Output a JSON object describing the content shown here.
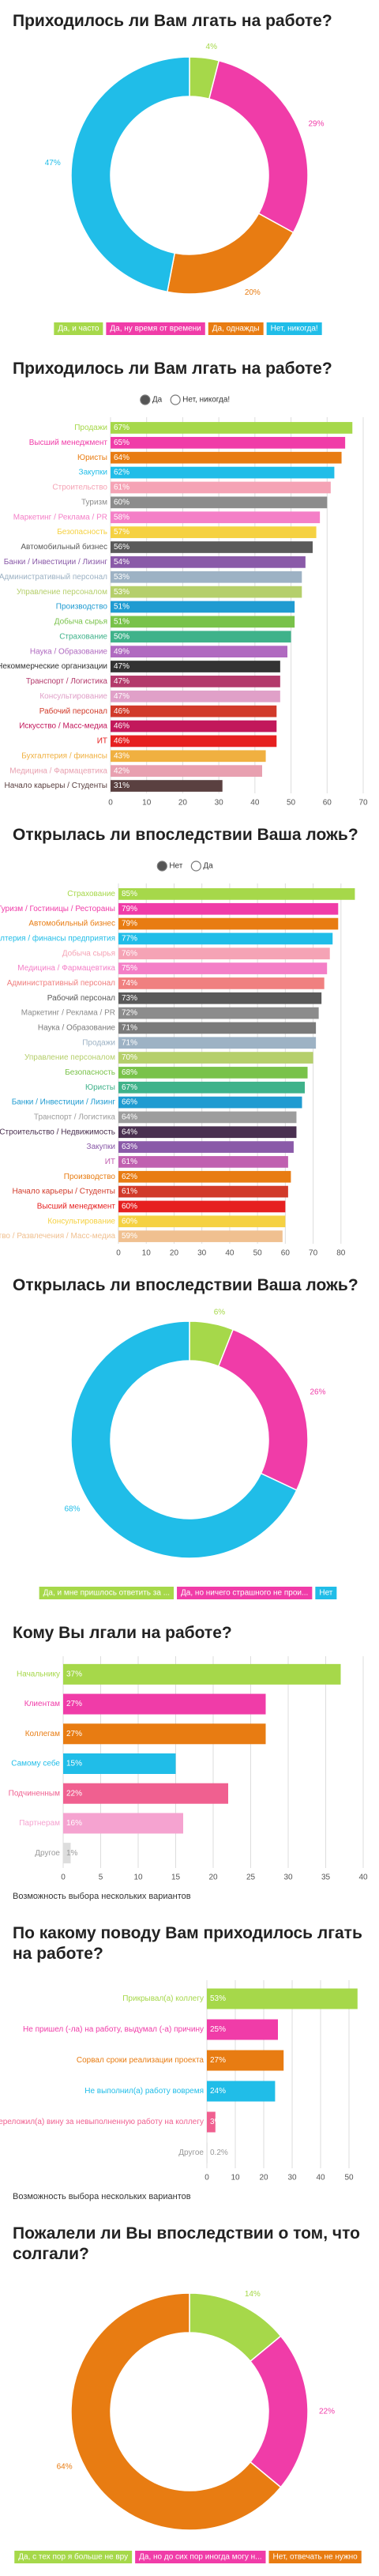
{
  "chart_data": [
    {
      "type": "donut",
      "title": "Приходилось ли Вам лгать на работе?",
      "categories": [
        "Да, и часто",
        "Да, ну время от времени",
        "Да, однажды",
        "Нет, никогда!"
      ],
      "values": [
        4,
        29,
        20,
        47
      ],
      "value_labels": [
        "4%",
        "29%",
        "20%",
        "47%"
      ],
      "colors": [
        "#a6d84a",
        "#f03ca8",
        "#e87c12",
        "#20bde8"
      ]
    },
    {
      "type": "bar",
      "title": "Приходилось ли Вам лгать на работе?",
      "options": [
        "Да",
        "Нет, никогда!"
      ],
      "categories": [
        "Продажи",
        "Высший менеджмент",
        "Юристы",
        "Закупки",
        "Строительство",
        "Туризм",
        "Маркетинг / Реклама / PR",
        "Безопасность",
        "Автомобильный бизнес",
        "Банки / Инвестиции / Лизинг",
        "Административный персонал",
        "Управление персоналом",
        "Производство",
        "Добыча сырья",
        "Страхование",
        "Наука / Образование",
        "Некоммерческие организации",
        "Транспорт / Логистика",
        "Консультирование",
        "Рабочий персонал",
        "Искусство / Масс-медиа",
        "ИТ",
        "Бухгалтерия / финансы",
        "Медицина / Фармацевтика",
        "Начало карьеры / Студенты"
      ],
      "values": [
        67,
        65,
        64,
        62,
        61,
        60,
        58,
        57,
        56,
        54,
        53,
        53,
        51,
        51,
        50,
        49,
        47,
        47,
        47,
        46,
        46,
        46,
        43,
        42,
        31
      ],
      "value_labels": [
        "67%",
        "65%",
        "64%",
        "62%",
        "61%",
        "60%",
        "58%",
        "57%",
        "56%",
        "54%",
        "53%",
        "53%",
        "51%",
        "51%",
        "50%",
        "49%",
        "47%",
        "47%",
        "47%",
        "46%",
        "46%",
        "46%",
        "43%",
        "42%",
        "31%"
      ],
      "colors": [
        "#a6d84a",
        "#f03ca8",
        "#e87c12",
        "#20bde8",
        "#f5a3b5",
        "#8c8c8c",
        "#f47fc7",
        "#f5d142",
        "#5a5a5a",
        "#8a5aa8",
        "#9db2c4",
        "#b5cf6b",
        "#1f9bd1",
        "#79c24a",
        "#3fb28a",
        "#b06ac0",
        "#333333",
        "#b33a6b",
        "#e0a0c8",
        "#d13a2a",
        "#c2185b",
        "#e62020",
        "#f0b040",
        "#e8a0b0",
        "#5a4040"
      ],
      "xlim": [
        0,
        70
      ],
      "xticks": [
        0,
        10,
        20,
        30,
        40,
        50,
        60,
        70
      ]
    },
    {
      "type": "bar",
      "title": "Открылась ли впоследствии Ваша ложь?",
      "options": [
        "Нет",
        "Да"
      ],
      "categories": [
        "Страхование",
        "Туризм / Гостиницы / Рестораны",
        "Автомобильный бизнес",
        "Бухгалтерия / финансы предприятия",
        "Добыча сырья",
        "Медицина / Фармацевтика",
        "Административный персонал",
        "Рабочий персонал",
        "Маркетинг / Реклама / PR",
        "Наука / Образование",
        "Продажи",
        "Управление персоналом",
        "Безопасность",
        "Юристы",
        "Банки / Инвестиции / Лизинг",
        "Транспорт / Логистика",
        "Строительство / Недвижимость",
        "Закупки",
        "ИТ",
        "Производство",
        "Начало карьеры / Студенты",
        "Высший менеджмент",
        "Консультирование",
        "Искусство / Развлечения / Масс-медиа"
      ],
      "values": [
        85,
        79,
        79,
        77,
        76,
        75,
        74,
        73,
        72,
        71,
        71,
        70,
        68,
        67,
        66,
        64,
        64,
        63,
        61,
        62,
        61,
        60,
        60,
        59
      ],
      "value_labels": [
        "85%",
        "79%",
        "79%",
        "77%",
        "76%",
        "75%",
        "74%",
        "73%",
        "72%",
        "71%",
        "71%",
        "70%",
        "68%",
        "67%",
        "66%",
        "64%",
        "64%",
        "63%",
        "61%",
        "62%",
        "61%",
        "60%",
        "60%",
        "59%"
      ],
      "colors": [
        "#a6d84a",
        "#f03ca8",
        "#e87c12",
        "#20bde8",
        "#f5a3b5",
        "#f47fc7",
        "#f08080",
        "#5a5a5a",
        "#8c8c8c",
        "#7a7a7a",
        "#9db2c4",
        "#b5cf6b",
        "#79c24a",
        "#3fb28a",
        "#1f9bd1",
        "#9d9d9d",
        "#4a3050",
        "#8a5aa8",
        "#c060b0",
        "#e87c12",
        "#d13a2a",
        "#e62020",
        "#f5d142",
        "#f0c090"
      ],
      "xlim": [
        0,
        88
      ],
      "xticks": [
        0,
        10,
        20,
        30,
        40,
        50,
        60,
        70,
        80
      ]
    },
    {
      "type": "donut",
      "title": "Открылась ли впоследствии Ваша ложь?",
      "categories": [
        "Да, и мне пришлось ответить за ...",
        "Да, но ничего страшного не прои...",
        "Нет"
      ],
      "values": [
        6,
        26,
        68
      ],
      "value_labels": [
        "6%",
        "26%",
        "68%"
      ],
      "colors": [
        "#a6d84a",
        "#f03ca8",
        "#20bde8"
      ]
    },
    {
      "type": "bar",
      "title": "Кому Вы лгали на работе?",
      "categories": [
        "Начальнику",
        "Клиентам",
        "Коллегам",
        "Самому себе",
        "Подчиненным",
        "Партнерам",
        "Другое"
      ],
      "values": [
        37,
        27,
        27,
        15,
        22,
        16,
        1
      ],
      "value_labels": [
        "37%",
        "27%",
        "27%",
        "15%",
        "22%",
        "16%",
        "1%"
      ],
      "colors": [
        "#a6d84a",
        "#f03ca8",
        "#e87c12",
        "#20bde8",
        "#f06090",
        "#f5a3d0",
        "#dddddd"
      ],
      "xlim": [
        0,
        40
      ],
      "xticks": [
        0,
        5,
        10,
        15,
        20,
        25,
        30,
        35,
        40
      ],
      "note": "Возможность выбора нескольких вариантов"
    },
    {
      "type": "bar",
      "title": "По какому поводу Вам приходилось лгать на работе?",
      "categories": [
        "Прикрывал(а) коллегу",
        "Не пришел (-ла) на работу, выдумал (-а) причину",
        "Сорвал сроки реализации проекта",
        "Не выполнил(а) работу вовремя",
        "Переложил(а) вину за невыполненную работу на коллегу",
        "Другое"
      ],
      "values": [
        53,
        25,
        27,
        24,
        3,
        0.2
      ],
      "value_labels": [
        "53%",
        "25%",
        "27%",
        "24%",
        "3%",
        "0.2%"
      ],
      "colors": [
        "#a6d84a",
        "#f03ca8",
        "#e87c12",
        "#20bde8",
        "#f06090",
        "#dddddd"
      ],
      "xlim": [
        0,
        55
      ],
      "xticks": [
        0,
        10,
        20,
        30,
        40,
        50
      ],
      "note": "Возможность выбора нескольких вариантов"
    },
    {
      "type": "donut",
      "title": "Пожалели ли Вы впоследствии о том, что солгали?",
      "categories": [
        "Да, с тех пор я больше не вру",
        "Да, но до сих пор иногда могу н...",
        "Нет, отвечать не нужно"
      ],
      "values": [
        14,
        22,
        64
      ],
      "value_labels": [
        "14%",
        "22%",
        "64%"
      ],
      "colors": [
        "#a6d84a",
        "#f03ca8",
        "#e87c12"
      ]
    }
  ]
}
